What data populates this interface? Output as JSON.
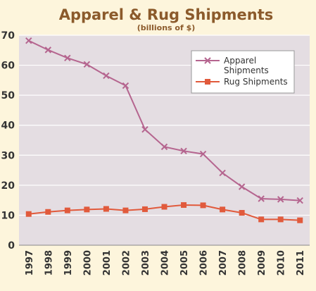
{
  "chart_data": {
    "type": "line",
    "title": "Apparel & Rug Shipments",
    "subtitle": "(billions of $)",
    "xlabel": "",
    "ylabel": "",
    "categories": [
      "1997",
      "1998",
      "1999",
      "2000",
      "2001",
      "2002",
      "2003",
      "2004",
      "2005",
      "2006",
      "2007",
      "2008",
      "2009",
      "2010",
      "2011"
    ],
    "ylim": [
      0,
      70
    ],
    "yticks": [
      0,
      10,
      20,
      30,
      40,
      50,
      60,
      70
    ],
    "grid": true,
    "legend_position": "top-right",
    "series": [
      {
        "name": "Apparel Shipments",
        "legend_lines": [
          "Apparel",
          "Shipments"
        ],
        "marker": "x",
        "color": "#b5658f",
        "values": [
          68.2,
          65.1,
          62.4,
          60.3,
          56.5,
          53.2,
          38.6,
          32.8,
          31.4,
          30.4,
          24.1,
          19.5,
          15.5,
          15.3,
          14.9
        ]
      },
      {
        "name": "Rug Shipments",
        "legend_lines": [
          "Rug Shipments"
        ],
        "marker": "square",
        "color": "#e15a3c",
        "values": [
          10.4,
          11.1,
          11.6,
          11.9,
          12.1,
          11.6,
          12.0,
          12.8,
          13.4,
          13.3,
          11.9,
          10.8,
          8.6,
          8.6,
          8.3
        ]
      }
    ]
  },
  "colors": {
    "background": "#fdf5dc",
    "plot_bg": "#e4dde2",
    "gridline": "#ffffff",
    "title": "#8b5a2b",
    "axis_text": "#333333"
  }
}
